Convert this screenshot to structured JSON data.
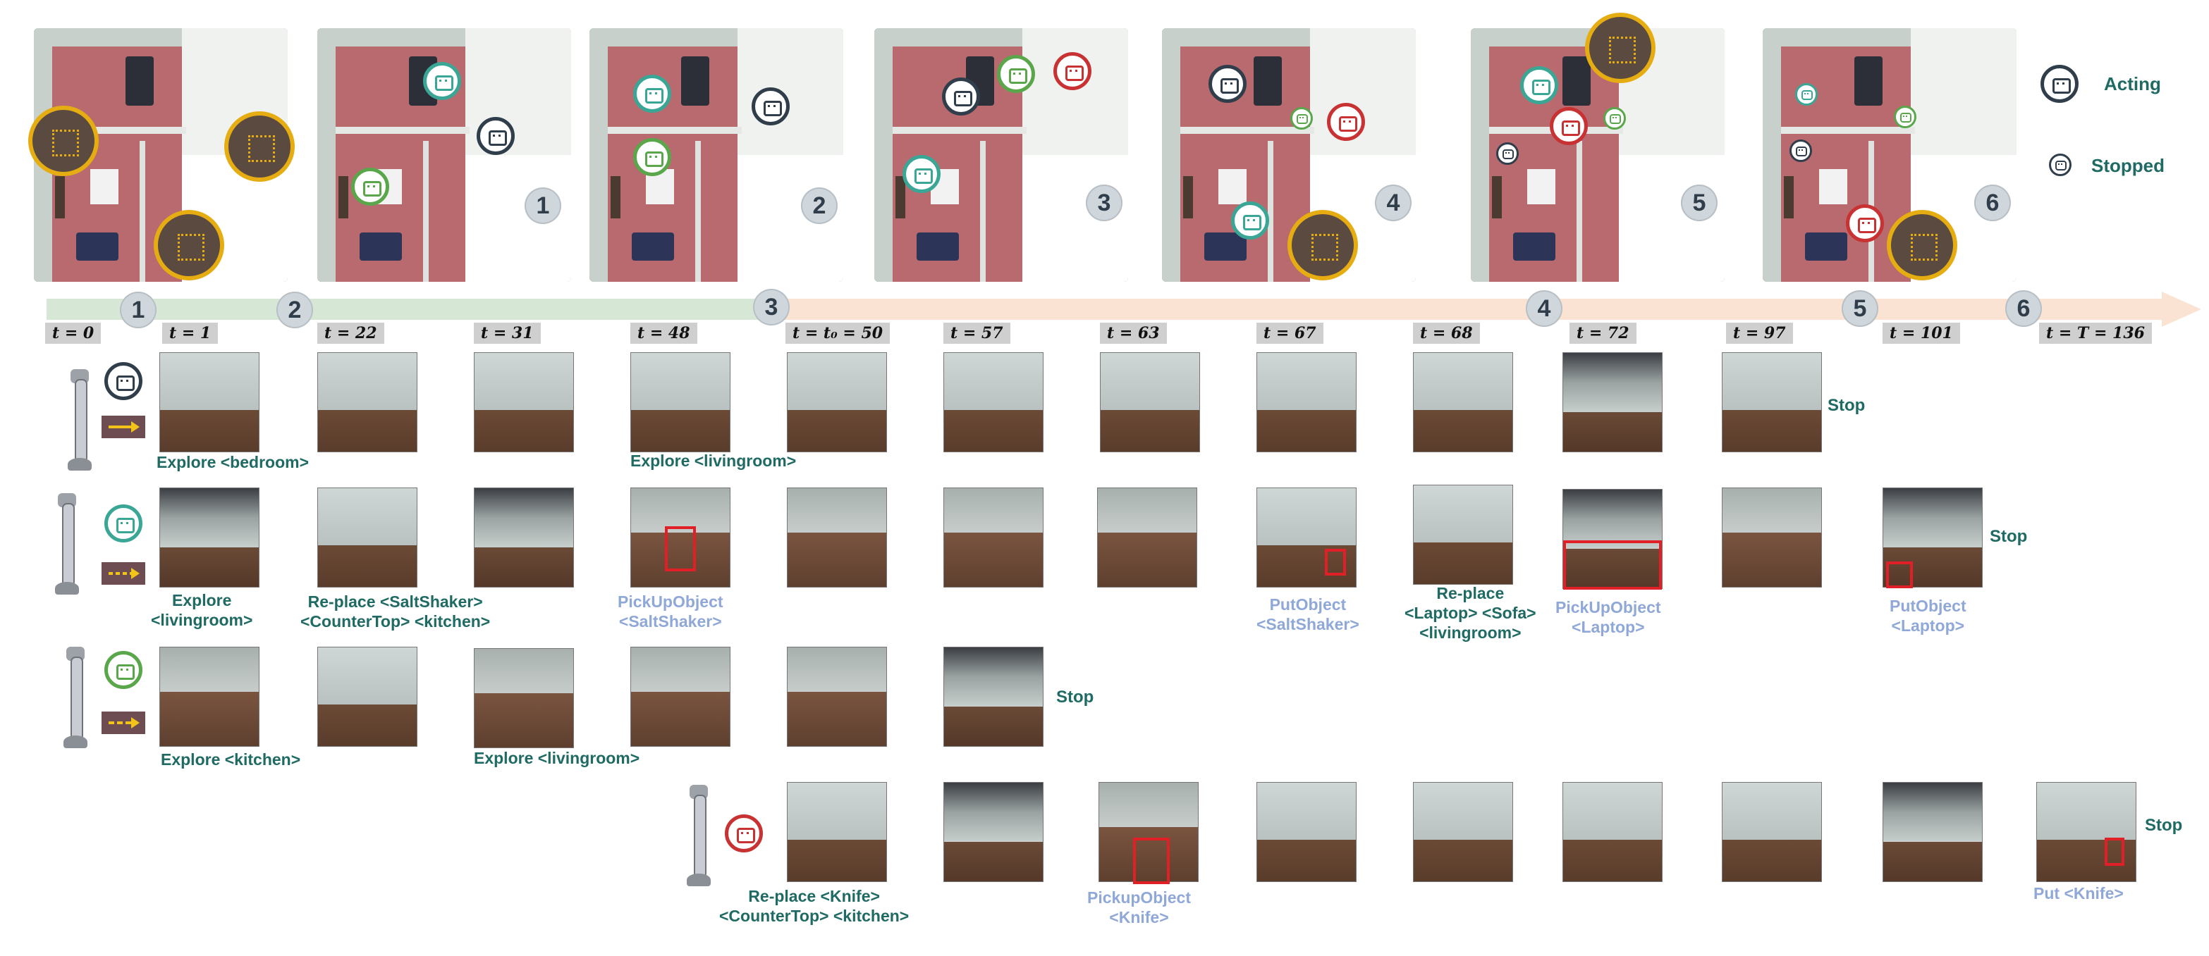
{
  "legend": {
    "acting": "Acting",
    "stopped": "Stopped"
  },
  "map_panel_numbers": [
    "1",
    "2",
    "3",
    "4",
    "5",
    "6"
  ],
  "timeline_markers": [
    "1",
    "2",
    "3",
    "4",
    "5",
    "6"
  ],
  "time_labels": [
    "t = 0",
    "t = 1",
    "t = 22",
    "t = 31",
    "t = 48",
    "t = t₀ = 50",
    "t = 57",
    "t = 63",
    "t = 67",
    "t = 68",
    "t = 72",
    "t = 97",
    "t = 101",
    "t = T = 136"
  ],
  "rows": {
    "row1": {
      "actions": [
        "Explore <bedroom>",
        "Explore <livingroom>"
      ],
      "stop": "Stop"
    },
    "row2": {
      "actions": [
        "Explore\n<livingroom>",
        "Re-place <SaltShaker>\n<CounterTop> <kitchen>",
        "PickUpObject\n<SaltShaker>",
        "PutObject\n<SaltShaker>",
        "Re-place\n<Laptop> <Sofa>\n<livingroom>",
        "PickUpObject\n<Laptop>",
        "PutObject\n<Laptop>"
      ],
      "stop": "Stop"
    },
    "row3": {
      "actions": [
        "Explore <kitchen>",
        "Explore <livingroom>"
      ],
      "stop": "Stop"
    },
    "row4": {
      "actions": [
        "Re-place <Knife>\n<CounterTop> <kitchen>",
        "PickupObject\n<Knife>",
        "Put <Knife>"
      ],
      "stop": "Stop"
    }
  },
  "colors": {
    "acting_dark": "#2f3e4a",
    "teal": "#3aa695",
    "green": "#5aa64a",
    "red": "#c83232",
    "highlight": "#e01f26",
    "action_text": "#1f6b63",
    "action_light": "#8fa8d8"
  }
}
